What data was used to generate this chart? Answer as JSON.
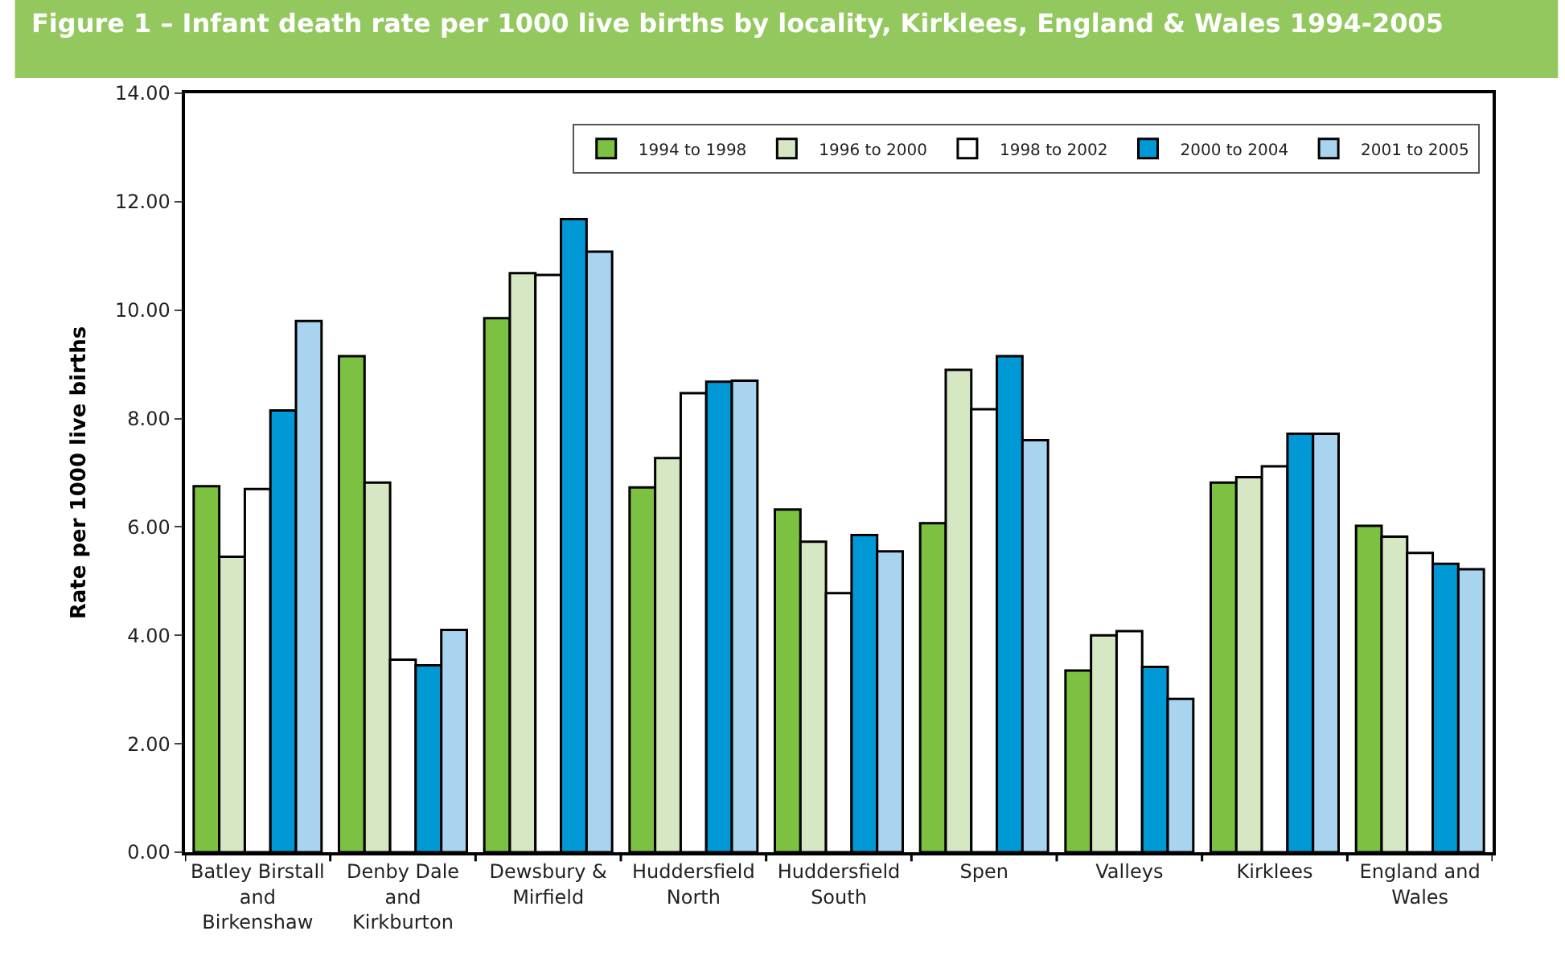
{
  "chart_data": {
    "type": "bar",
    "title": "Figure 1 – Infant death rate per 1000 live births by locality, Kirklees, England & Wales 1994-2005",
    "ylabel": "Rate per 1000 live births",
    "categories": [
      "Batley Birstall\nand\nBirkenshaw",
      "Denby Dale\nand\nKirkburton",
      "Dewsbury &\nMirfield",
      "Huddersfield\nNorth",
      "Huddersfield\nSouth",
      "Spen",
      "Valleys",
      "Kirklees",
      "England and\nWales"
    ],
    "series": [
      {
        "name": "1994 to 1998",
        "color": "#7dc142",
        "values": [
          6.75,
          9.15,
          9.85,
          6.73,
          6.32,
          6.07,
          3.35,
          6.82,
          6.02
        ]
      },
      {
        "name": "1996 to 2000",
        "color": "#d6e8c3",
        "values": [
          5.45,
          6.82,
          10.68,
          7.27,
          5.73,
          8.9,
          4.0,
          6.92,
          5.82
        ]
      },
      {
        "name": "1998 to 2002",
        "color": "#ffffff",
        "values": [
          6.7,
          3.55,
          10.65,
          8.47,
          4.78,
          8.17,
          4.08,
          7.12,
          5.52
        ]
      },
      {
        "name": "2000 to 2004",
        "color": "#0099d6",
        "values": [
          8.15,
          3.45,
          11.68,
          8.68,
          5.85,
          9.15,
          3.42,
          7.72,
          5.32
        ]
      },
      {
        "name": "2001 to 2005",
        "color": "#a9d4ef",
        "values": [
          9.8,
          4.1,
          11.08,
          8.7,
          5.55,
          7.6,
          2.83,
          7.72,
          5.22
        ]
      }
    ],
    "ylim": [
      0,
      14
    ],
    "yticks": [
      {
        "value": 0,
        "label": "0.00"
      },
      {
        "value": 2,
        "label": "2.00"
      },
      {
        "value": 4,
        "label": "4.00"
      },
      {
        "value": 6,
        "label": "6.00"
      },
      {
        "value": 8,
        "label": "8.00"
      },
      {
        "value": 10,
        "label": "10.00"
      },
      {
        "value": 12,
        "label": "12.00"
      },
      {
        "value": 14,
        "label": "14.00"
      }
    ],
    "grid": false,
    "legend": "top right"
  }
}
